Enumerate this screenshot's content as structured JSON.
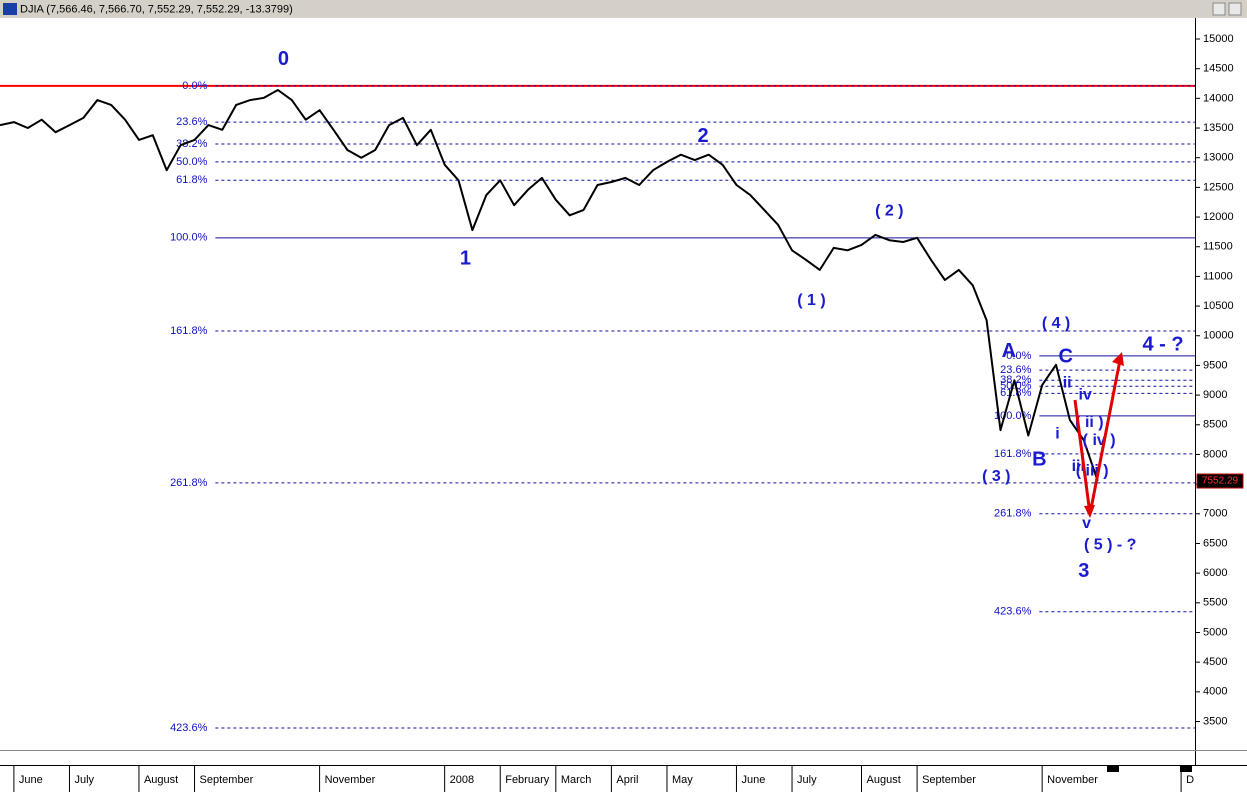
{
  "chart_data": {
    "type": "line",
    "title": "DJIA (7,566.46, 7,566.70, 7,552.29, 7,552.29, -13.3799)",
    "categories": [
      null,
      "June",
      null,
      null,
      null,
      "July",
      null,
      null,
      null,
      null,
      "August",
      null,
      null,
      null,
      "September",
      null,
      null,
      null,
      null,
      null,
      null,
      null,
      null,
      "November",
      null,
      null,
      null,
      null,
      null,
      null,
      null,
      null,
      "2008",
      null,
      null,
      null,
      "February",
      null,
      null,
      null,
      "March",
      null,
      null,
      null,
      "April",
      null,
      null,
      null,
      "May",
      null,
      null,
      null,
      null,
      "June",
      null,
      null,
      null,
      "July",
      null,
      null,
      null,
      null,
      "August",
      null,
      null,
      null,
      "September",
      null,
      null,
      null,
      null,
      null,
      null,
      null,
      null,
      "November",
      null,
      null,
      null,
      null,
      null,
      null,
      null,
      null,
      null,
      "D"
    ],
    "values": [
      13550,
      13600,
      13500,
      13640,
      13430,
      13550,
      13670,
      13970,
      13890,
      13640,
      13300,
      13380,
      12790,
      13210,
      13300,
      13550,
      13470,
      13890,
      13970,
      14010,
      14140,
      13970,
      13640,
      13800,
      13470,
      13130,
      13000,
      13130,
      13550,
      13670,
      13210,
      13470,
      12880,
      12620,
      11780,
      12370,
      12620,
      12200,
      12460,
      12660,
      12290,
      12030,
      12120,
      12540,
      12590,
      12660,
      12540,
      12790,
      12930,
      13050,
      12960,
      13050,
      12880,
      12540,
      12370,
      12120,
      11870,
      11440,
      11280,
      11110,
      11480,
      11440,
      11530,
      11700,
      11610,
      11580,
      11650,
      11280,
      10940,
      11110,
      10850,
      10260,
      8410,
      9250,
      8320,
      9170,
      9510,
      8580,
      8240,
      7552.29,
      null,
      null,
      null,
      null,
      null,
      null
    ],
    "color": "#000000",
    "ylim": [
      3020,
      15354
    ],
    "yticks": [
      3500,
      4000,
      4500,
      5000,
      5500,
      6000,
      6500,
      7000,
      7500,
      8000,
      8500,
      9000,
      9500,
      10000,
      10500,
      11000,
      11500,
      12000,
      12500,
      13000,
      13500,
      14000,
      14500,
      15000
    ],
    "last_price": 7552.29,
    "resistance_line": {
      "value": 14210,
      "color": "#ff0000"
    },
    "fib_color": "#1010a0",
    "fib_sets": [
      {
        "from": 15.5,
        "levels": [
          {
            "label": "0.0%",
            "value": 14210
          },
          {
            "label": "23.6%",
            "value": 13600
          },
          {
            "label": "38.2%",
            "value": 13230
          },
          {
            "label": "50.0%",
            "value": 12930
          },
          {
            "label": "61.8%",
            "value": 12620
          },
          {
            "label": "100.0%",
            "value": 11650,
            "solid": true
          },
          {
            "label": "161.8%",
            "value": 10080
          },
          {
            "label": "261.8%",
            "value": 7520
          },
          {
            "label": "423.6%",
            "value": 3390
          }
        ]
      },
      {
        "from": 74.8,
        "levels": [
          {
            "label": "0.0%",
            "value": 9660,
            "solid": true
          },
          {
            "label": "23.6%",
            "value": 9420
          },
          {
            "label": "38.2%",
            "value": 9250
          },
          {
            "label": "50.0%",
            "value": 9150
          },
          {
            "label": "61.8%",
            "value": 9030
          },
          {
            "label": "100.0%",
            "value": 8650,
            "solid": true
          },
          {
            "label": "161.8%",
            "value": 8010
          },
          {
            "label": "261.8%",
            "value": 7000
          },
          {
            "label": "423.6%",
            "value": 5350
          }
        ]
      }
    ],
    "annotations": [
      {
        "text": "0",
        "x": 20.4,
        "y": 14650,
        "size": "large"
      },
      {
        "text": "1",
        "x": 33.5,
        "y": 11290,
        "size": "large"
      },
      {
        "text": "2",
        "x": 50.6,
        "y": 13350,
        "size": "large"
      },
      {
        "text": "( 2 )",
        "x": 64,
        "y": 12100,
        "size": "small"
      },
      {
        "text": "( 1 )",
        "x": 58.4,
        "y": 10590,
        "size": "small"
      },
      {
        "text": "( 4 )",
        "x": 76,
        "y": 10200,
        "size": "small"
      },
      {
        "text": "( 3 )",
        "x": 71.7,
        "y": 7620,
        "size": "small"
      },
      {
        "text": "A",
        "x": 72.6,
        "y": 9730,
        "size": "large"
      },
      {
        "text": "C",
        "x": 76.7,
        "y": 9640,
        "size": "large"
      },
      {
        "text": "B",
        "x": 74.8,
        "y": 7900,
        "size": "large"
      },
      {
        "text": "4 - ?",
        "x": 83.7,
        "y": 9840,
        "size": "large"
      },
      {
        "text": "ii",
        "x": 76.8,
        "y": 9200,
        "size": "small"
      },
      {
        "text": "iv",
        "x": 78.1,
        "y": 9000,
        "size": "small"
      },
      {
        "text": "i",
        "x": 76.1,
        "y": 8340,
        "size": "small"
      },
      {
        "text": "( ii )",
        "x": 78.4,
        "y": 8530,
        "size": "small"
      },
      {
        "text": "( iv )",
        "x": 79.1,
        "y": 8230,
        "size": "small"
      },
      {
        "text": "iii",
        "x": 77.6,
        "y": 7790,
        "size": "small"
      },
      {
        "text": "( iii )",
        "x": 78.6,
        "y": 7720,
        "size": "small"
      },
      {
        "text": "v",
        "x": 78.2,
        "y": 6830,
        "size": "small"
      },
      {
        "text": "( 5 )  - ?",
        "x": 79.9,
        "y": 6470,
        "size": "small"
      },
      {
        "text": "3",
        "x": 78,
        "y": 6020,
        "size": "large"
      }
    ]
  }
}
